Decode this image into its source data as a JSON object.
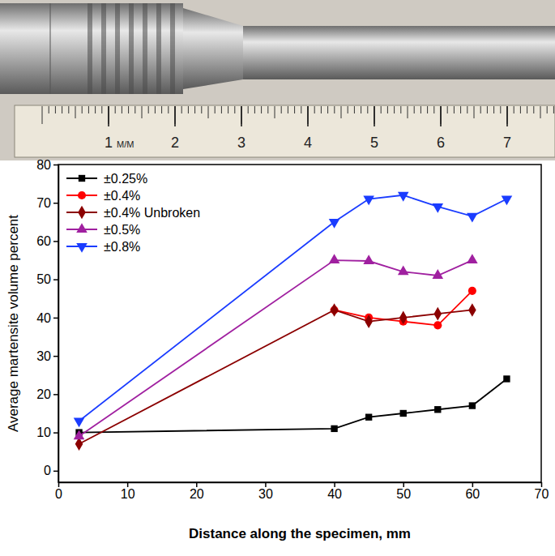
{
  "chart_data": {
    "type": "line",
    "xlabel": "Distance along the specimen, mm",
    "ylabel": "Average martensite volume percent",
    "xlim": [
      0,
      70
    ],
    "ylim": [
      -3,
      80
    ],
    "xticks": [
      0,
      10,
      20,
      30,
      40,
      50,
      60,
      70
    ],
    "yticks": [
      0,
      10,
      20,
      30,
      40,
      50,
      60,
      70,
      80
    ],
    "legend": "upper left",
    "series": [
      {
        "name": "±0.25%",
        "color": "#000000",
        "marker": "square",
        "line_style": "solid",
        "x": [
          3,
          40,
          45,
          50,
          55,
          60,
          65
        ],
        "values": [
          10,
          11,
          14,
          15,
          16,
          17,
          24
        ]
      },
      {
        "name": "±0.4%",
        "color": "#ff0000",
        "marker": "circle",
        "line_style": "solid",
        "x": [
          40,
          45,
          50,
          55,
          60
        ],
        "values": [
          42,
          40,
          39,
          38,
          47
        ]
      },
      {
        "name": "±0.4% Unbroken",
        "color": "#8b0000",
        "marker": "diamond",
        "line_style": "solid",
        "x": [
          3,
          40,
          45,
          50,
          55,
          60
        ],
        "values": [
          7,
          42,
          39,
          40,
          41,
          42
        ]
      },
      {
        "name": "±0.5%",
        "color": "#a020a0",
        "marker": "triangle",
        "line_style": "solid",
        "x": [
          3,
          40,
          45,
          50,
          55,
          60
        ],
        "values": [
          9,
          55,
          54.8,
          52,
          51,
          55
        ]
      },
      {
        "name": "±0.8%",
        "color": "#1a3cff",
        "marker": "triangle-down",
        "line_style": "solid",
        "x": [
          3,
          40,
          45,
          50,
          55,
          60,
          65
        ],
        "values": [
          13,
          65,
          71,
          72,
          69,
          66.5,
          71
        ]
      }
    ]
  },
  "photo": {
    "ruler_ticks": [
      1,
      2,
      3,
      4,
      5,
      6,
      7
    ],
    "ruler_unit": "M/M"
  }
}
